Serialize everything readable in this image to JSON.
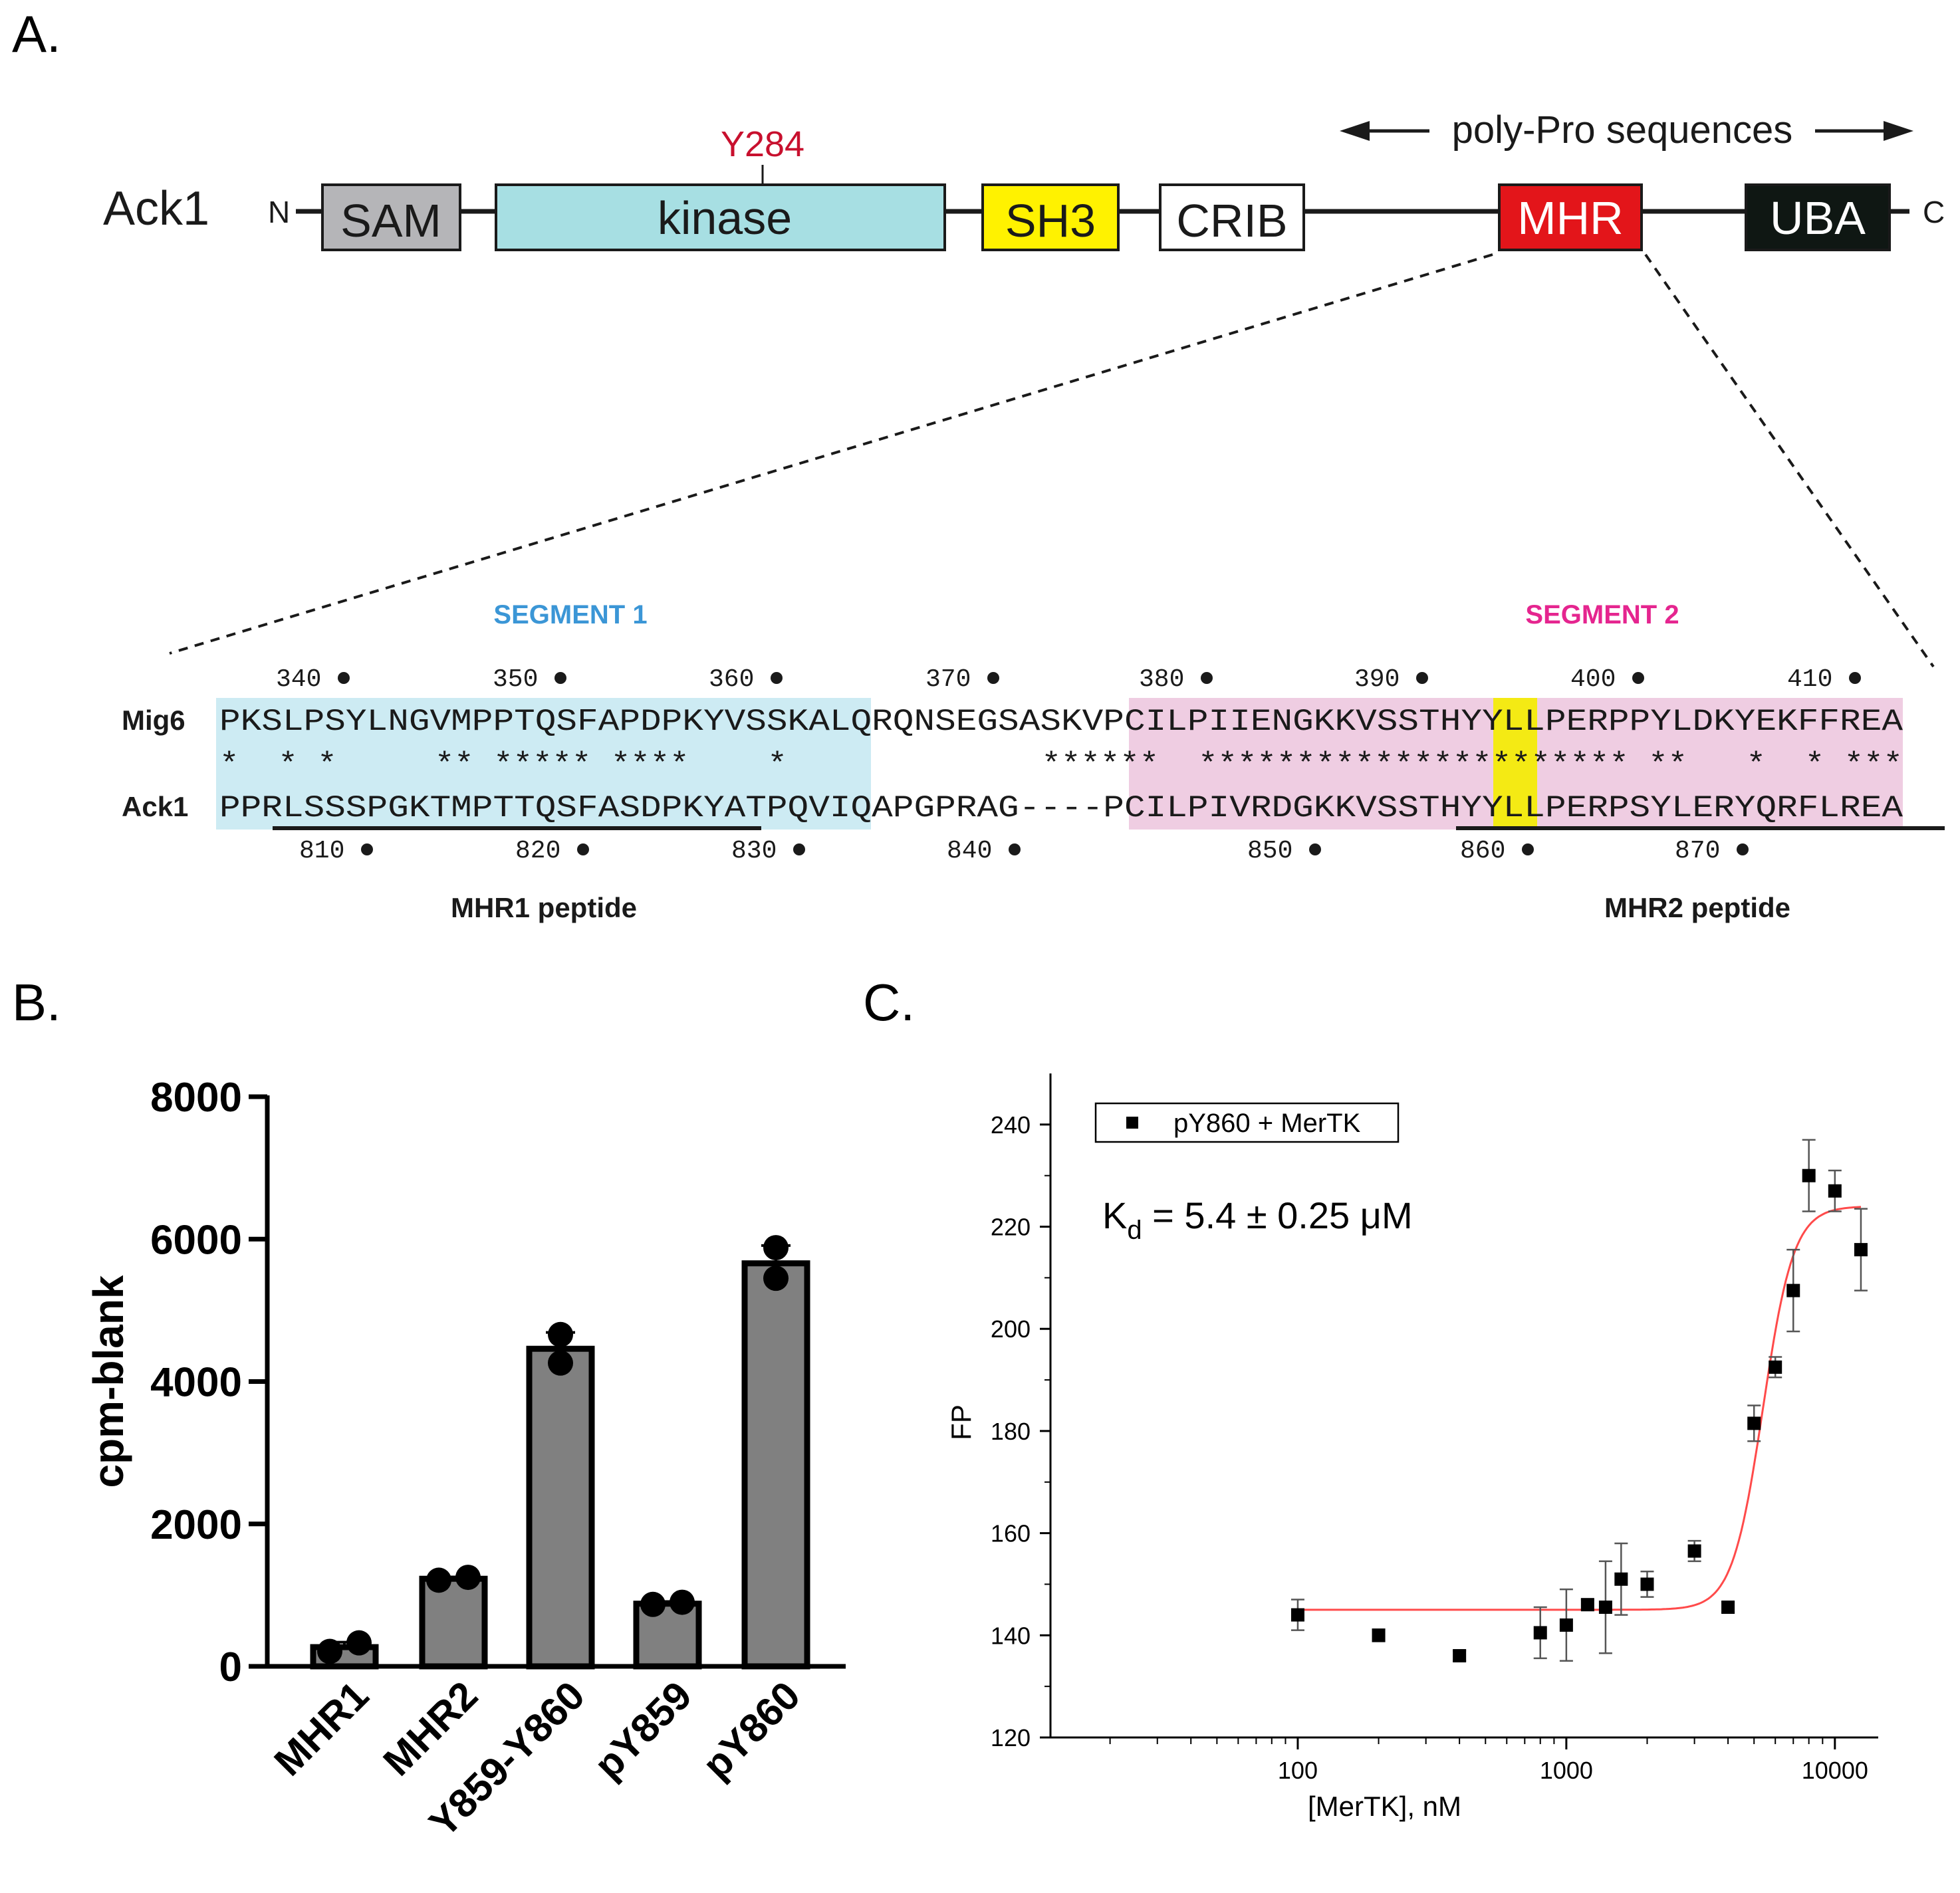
{
  "panel_a": {
    "label": "A.",
    "protein": "Ack1",
    "n_term": "N",
    "c_term": "C",
    "site": "Y284",
    "poly_pro": "poly-Pro sequences",
    "domains": [
      {
        "name": "SAM",
        "color": "#b5b5b8",
        "text_color": "#1a1a1a"
      },
      {
        "name": "kinase",
        "color": "#a7dfe3",
        "text_color": "#1a1a1a"
      },
      {
        "name": "SH3",
        "color": "#fff200",
        "text_color": "#1a1a1a"
      },
      {
        "name": "CRIB",
        "color": "#ffffff",
        "text_color": "#1a1a1a"
      },
      {
        "name": "MHR",
        "color": "#e3151a",
        "text_color": "#ffffff"
      },
      {
        "name": "UBA",
        "color": "#0f1713",
        "text_color": "#ffffff"
      }
    ],
    "segment1_title": "SEGMENT 1",
    "segment2_title": "SEGMENT 2",
    "segment1_color": "#3b96d6",
    "segment2_color": "#e5258f",
    "mig6_label": "Mig6",
    "ack1_label": "Ack1",
    "mig6_seq": "PKSLPSYLNGVMPPTQSFAPDPKYVSSKALQRQNSEGSASKVPCILPIIENGKKVSSTHYYLLPERPPYLDKYEKFFREA",
    "conservation": "*  * *     ** ***** ****    *             ******  ********************** **   *  * ***",
    "ack1_seq": "PPRLSSSPGKTMPTTQSFASDPKYATPQVIQAPGPRAG----PCILPIVRDGKKVSSTHYYLLPERPSYLERYQRFLREA",
    "mig6_numbers": [
      "340",
      "350",
      "360",
      "370",
      "380",
      "390",
      "400",
      "410"
    ],
    "ack1_numbers": [
      "810",
      "820",
      "830",
      "840",
      "850",
      "860",
      "870"
    ],
    "mhr1_peptide": "MHR1 peptide",
    "mhr2_peptide": "MHR2 peptide"
  },
  "panel_b": {
    "label": "B.",
    "chart_data": {
      "type": "bar",
      "categories": [
        "MHR1",
        "MHR2",
        "Y859-Y860",
        "pY859",
        "pY860"
      ],
      "values": [
        270,
        1230,
        4460,
        880,
        5660
      ],
      "points": [
        [
          210,
          330
        ],
        [
          1210,
          1250
        ],
        [
          4260,
          4660
        ],
        [
          870,
          900
        ],
        [
          5450,
          5880
        ]
      ],
      "errors": [
        70,
        25,
        230,
        30,
        250
      ],
      "ylabel": "cpm-blank",
      "ylim": [
        0,
        8000
      ],
      "yticks": [
        0,
        2000,
        4000,
        6000,
        8000
      ],
      "bar_color": "#808080"
    }
  },
  "panel_c": {
    "label": "C.",
    "chart_data": {
      "type": "scatter",
      "x": [
        100,
        200,
        400,
        800,
        1000,
        1200,
        1400,
        1600,
        2000,
        3000,
        4000,
        5000,
        6000,
        7000,
        8000,
        10000,
        12500
      ],
      "y": [
        144,
        140,
        136,
        140.5,
        142,
        146,
        145.5,
        151,
        150,
        156.5,
        145.5,
        181.5,
        192.5,
        207.5,
        230,
        227,
        215.5
      ],
      "err": [
        3,
        1.2,
        1,
        5,
        7,
        1,
        9,
        7,
        2.5,
        2,
        1,
        3.5,
        2,
        8,
        7,
        4,
        8
      ],
      "fit": {
        "bottom": 145,
        "top": 224,
        "ec50_nM": 5400,
        "hill": 7.6
      },
      "fit_color": "#ff4a4a",
      "xlabel": "[MerTK], nM",
      "ylabel": "FP",
      "xscale": "log",
      "xlim": [
        12,
        14500
      ],
      "ylim": [
        120,
        250
      ],
      "yticks": [
        120,
        140,
        160,
        180,
        200,
        220,
        240
      ],
      "xticks": [
        100,
        1000,
        10000
      ],
      "xtick_labels": [
        "100",
        "1000",
        "10000"
      ],
      "legend": "pY860 + MerTK",
      "annotation_prefix": "K",
      "annotation_sub": "d",
      "annotation_value": " = 5.4 ± 0.25 μM"
    }
  }
}
